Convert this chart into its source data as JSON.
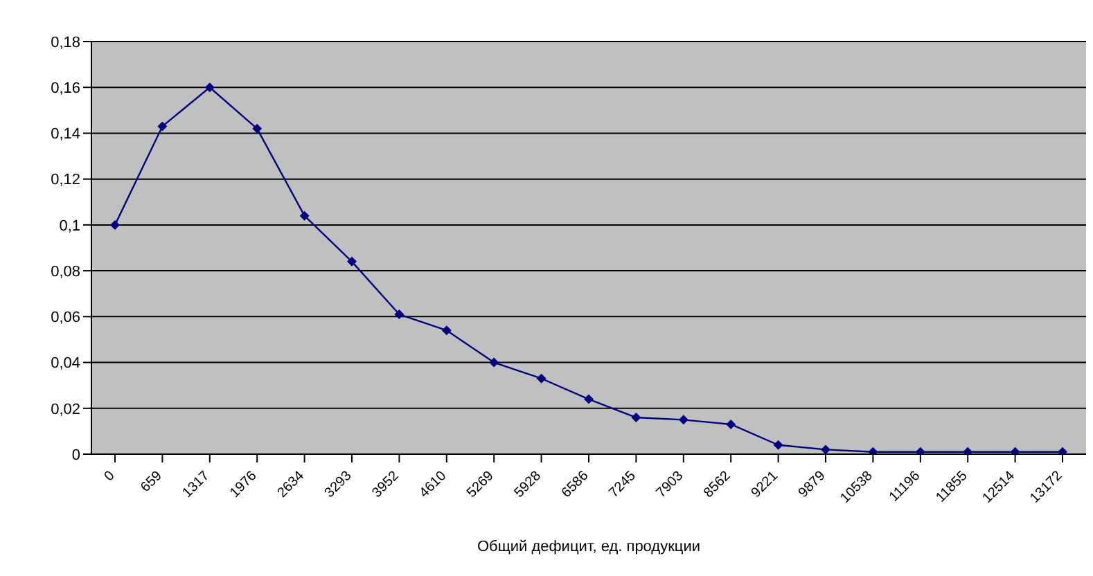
{
  "chart_data": {
    "type": "line",
    "xlabel": "Общий дефицит, ед. продукции",
    "categories": [
      "0",
      "659",
      "1317",
      "1976",
      "2634",
      "3293",
      "3952",
      "4610",
      "5269",
      "5928",
      "6586",
      "7245",
      "7903",
      "8562",
      "9221",
      "9879",
      "10538",
      "11196",
      "11855",
      "12514",
      "13172"
    ],
    "series": [
      {
        "color": "#000080",
        "values": [
          0.1,
          0.143,
          0.16,
          0.142,
          0.104,
          0.084,
          0.061,
          0.054,
          0.04,
          0.033,
          0.024,
          0.016,
          0.015,
          0.013,
          0.004,
          0.002,
          0.001,
          0.001,
          0.001,
          0.001,
          0.001
        ]
      }
    ],
    "ylim": [
      0,
      0.18
    ],
    "yticks": [
      {
        "value": 0,
        "label": "0"
      },
      {
        "value": 0.02,
        "label": "0,02"
      },
      {
        "value": 0.04,
        "label": "0,04"
      },
      {
        "value": 0.06,
        "label": "0,06"
      },
      {
        "value": 0.08,
        "label": "0,08"
      },
      {
        "value": 0.1,
        "label": "0,1"
      },
      {
        "value": 0.12,
        "label": "0,12"
      },
      {
        "value": 0.14,
        "label": "0,14"
      },
      {
        "value": 0.16,
        "label": "0,16"
      },
      {
        "value": 0.18,
        "label": "0,18"
      }
    ],
    "grid": "y",
    "legend": false,
    "marker": "diamond",
    "line_style": "solid"
  }
}
